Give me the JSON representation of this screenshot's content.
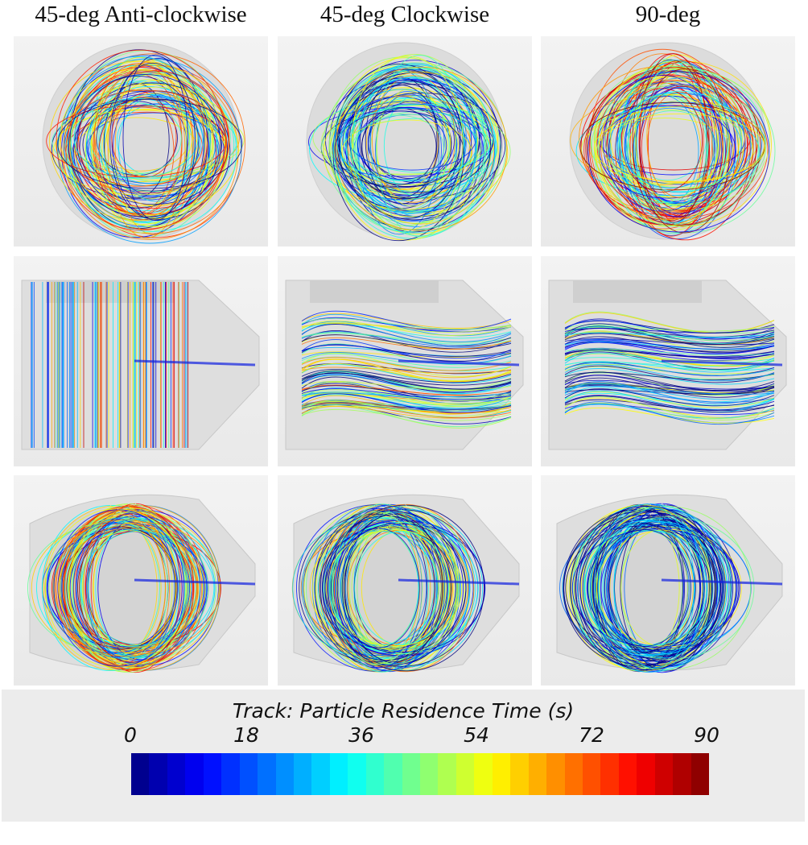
{
  "columns": [
    {
      "title": "45-deg Anti-clockwise"
    },
    {
      "title": "45-deg Clockwise"
    },
    {
      "title": "90-deg"
    }
  ],
  "rows": [
    "front view",
    "side view",
    "perspective view"
  ],
  "colorbar": {
    "title": "Track: Particle Residence Time (s)",
    "ticks": [
      "0",
      "18",
      "36",
      "54",
      "72",
      "90"
    ],
    "min": 0,
    "max": 90,
    "segments": 32,
    "colormap": "jet",
    "colors": {
      "low": "#0000ff",
      "mid": "#00ff40",
      "high": "#ff0000"
    }
  }
}
